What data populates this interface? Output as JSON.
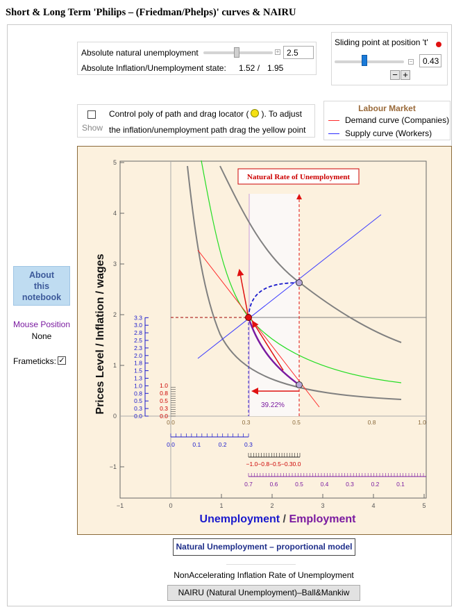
{
  "title": "Short & Long Term 'Philips – (Friedman/Phelps)' curves & NAIRU",
  "controls": {
    "natural_unemployment_label": "Absolute natural unemployment",
    "natural_unemployment_value": "2.5",
    "state_label": "Absolute Inflation/Unemployment state:",
    "state_inflation": "1.52 /",
    "state_unemployment": "1.95"
  },
  "sliding_point": {
    "label": "Sliding point at position 't'",
    "value": "0.43",
    "fraction": 0.43,
    "minus": "−",
    "plus": "+"
  },
  "poly": {
    "checkbox_label": "Show",
    "text_line1": "Control poly of path and drag locator (",
    "text_line1_end": "). To adjust",
    "text_line2": "the inflation/unemployment path drag the yellow point"
  },
  "legend": {
    "title": "Labour Market",
    "items": [
      {
        "label": "Demand curve (Companies)",
        "color": "#ff2a2a"
      },
      {
        "label": "Supply curve (Workers)",
        "color": "#2a2aff"
      }
    ]
  },
  "sidebar": {
    "about_line1": "About",
    "about_line2": "this",
    "about_line3": "notebook",
    "mouse_label": "Mouse Position",
    "mouse_value": "None",
    "frameticks_label": "Frameticks:",
    "frameticks_mark": "✓"
  },
  "plot": {
    "annotation": "Natural Rate of Unemployment",
    "percent_label": "39.22%",
    "ylabel": "Prices Level / Inflation / wages",
    "xlabel_left": "Unemployment",
    "xlabel_sep": " / ",
    "xlabel_right": "Employment",
    "x_ticks": [
      "−1",
      "0",
      "1",
      "2",
      "3",
      "4",
      "5"
    ],
    "y_ticks": [
      "−1",
      "0",
      "1",
      "2",
      "3",
      "4",
      "5"
    ],
    "inner_x_ticks": [
      "0.0",
      "0.3",
      "0.5",
      "0.8",
      "1.0"
    ],
    "left_blue_ticks": [
      "0.0",
      "0.3",
      "0.5",
      "0.8",
      "1.0",
      "1.3",
      "1.5",
      "1.8",
      "2.0",
      "2.3",
      "2.5",
      "2.8",
      "3.0",
      "3.3"
    ],
    "left_red_ticks": [
      "0.0",
      "0.3",
      "0.5",
      "0.8",
      "1.0"
    ],
    "sub_blue_ticks": [
      "0.0",
      "0.1",
      "0.2",
      "0.3"
    ],
    "sub_red_ticks": "−1.0−0.8−0.5−0.30.0",
    "sub_purple_ticks": [
      "0.7",
      "0.6",
      "0.5",
      "0.4",
      "0.3",
      "0.2",
      "0.1"
    ],
    "colors": {
      "demand": "#ff2a2a",
      "supply": "#3a3aff",
      "philips": "#808080",
      "green": "#22dd22",
      "employment": "#7a1aa0",
      "label_blue": "#1a1acc",
      "label_purple": "#7a1aa0",
      "annotation": "#cc0000"
    }
  },
  "buttons": {
    "proportional": "Natural Unemployment – proportional model",
    "nairu_caption": "NonAccelerating Inflation Rate of Unemployment",
    "nairu_button": "NAIRU (Natural Unemployment)–Ball&Mankiw"
  }
}
